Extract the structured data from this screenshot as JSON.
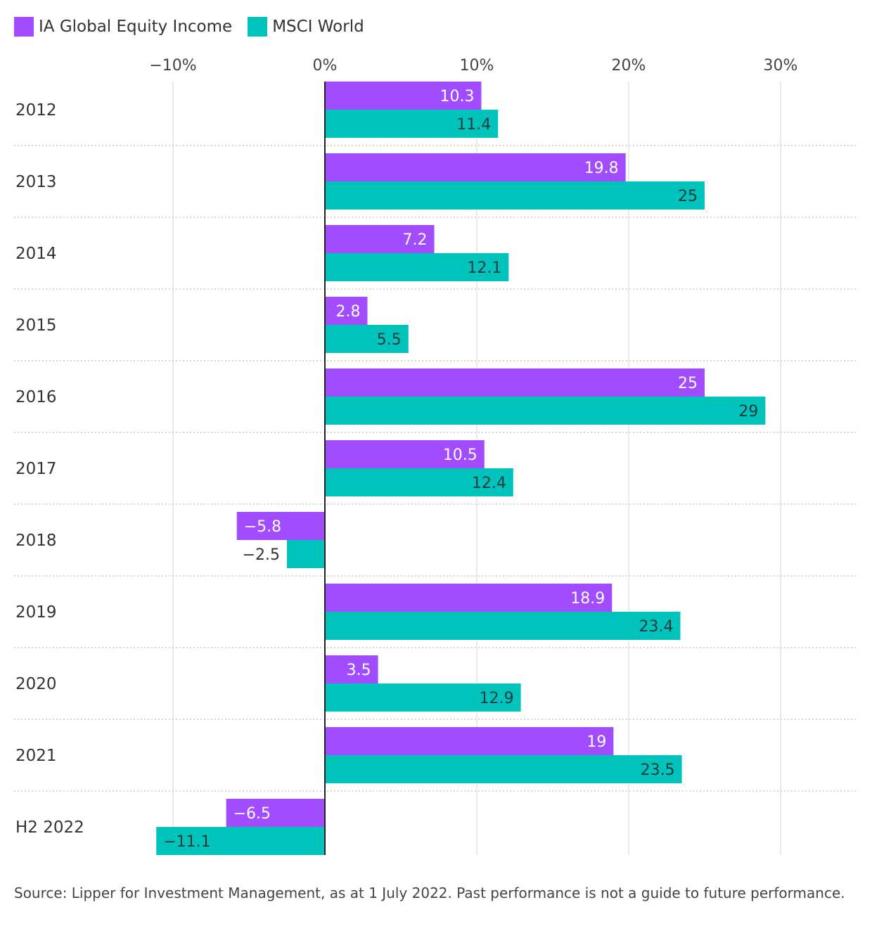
{
  "chart_data": {
    "type": "bar",
    "orientation": "horizontal",
    "categories": [
      "2012",
      "2013",
      "2014",
      "2015",
      "2016",
      "2017",
      "2018",
      "2019",
      "2020",
      "2021",
      "H2 2022"
    ],
    "series": [
      {
        "name": "IA Global Equity Income",
        "color": "#a24cff",
        "label_color": "#ffffff",
        "values": [
          10.3,
          19.8,
          7.2,
          2.8,
          25,
          10.5,
          -5.8,
          18.9,
          3.5,
          19,
          -6.5
        ]
      },
      {
        "name": "MSCI World",
        "color": "#00c4bc",
        "label_color": "#1f3b3a",
        "values": [
          11.4,
          25,
          12.1,
          5.5,
          29,
          12.4,
          -2.5,
          23.4,
          12.9,
          23.5,
          -11.1
        ]
      }
    ],
    "x_ticks": [
      -10,
      0,
      10,
      20,
      30
    ],
    "x_tick_labels": [
      "−10%",
      "0%",
      "10%",
      "20%",
      "30%"
    ],
    "xlim": [
      -11.1,
      35
    ],
    "grid": true,
    "legend": "top-left"
  },
  "source": "Source: Lipper for Investment Management, as at 1 July 2022. Past performance is not a guide to future performance."
}
